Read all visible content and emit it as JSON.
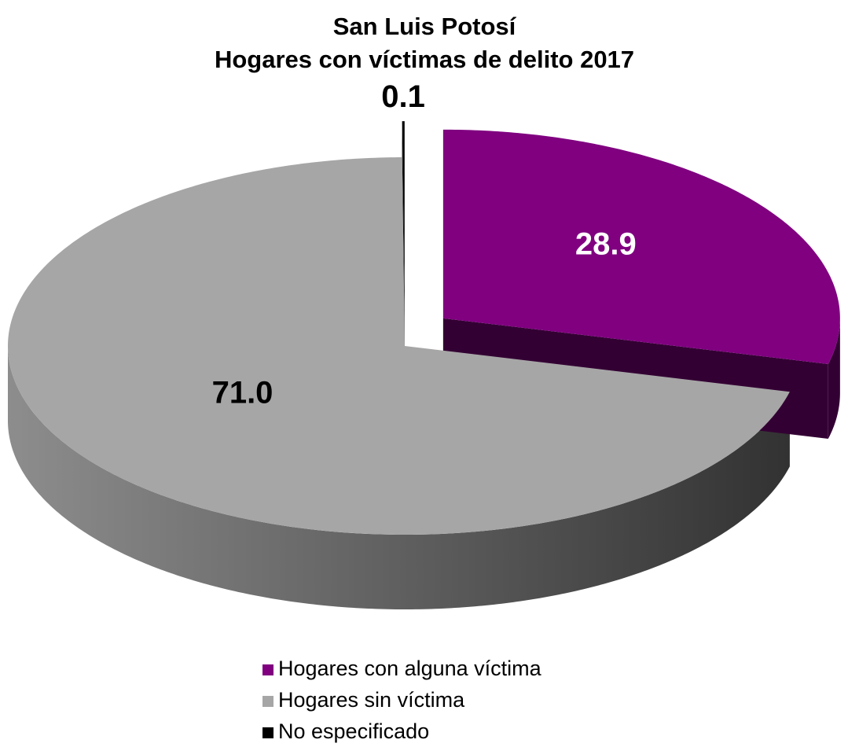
{
  "chart_data": {
    "type": "pie3d",
    "title": "San Luis Potosí",
    "subtitle": "Hogares con víctimas de delito 2017",
    "categories": [
      "Hogares con alguna víctima",
      "Hogares sin víctima",
      "No especificado"
    ],
    "values": [
      28.9,
      71.0,
      0.1
    ],
    "value_labels": [
      "28.9",
      "71.0",
      "0.1"
    ],
    "colors": [
      "#800080",
      "#a6a6a6",
      "#000000"
    ],
    "label_colors": [
      "#ffffff",
      "#000000",
      "#000000"
    ],
    "exploded": [
      true,
      false,
      true
    ],
    "legend": "bottom"
  }
}
